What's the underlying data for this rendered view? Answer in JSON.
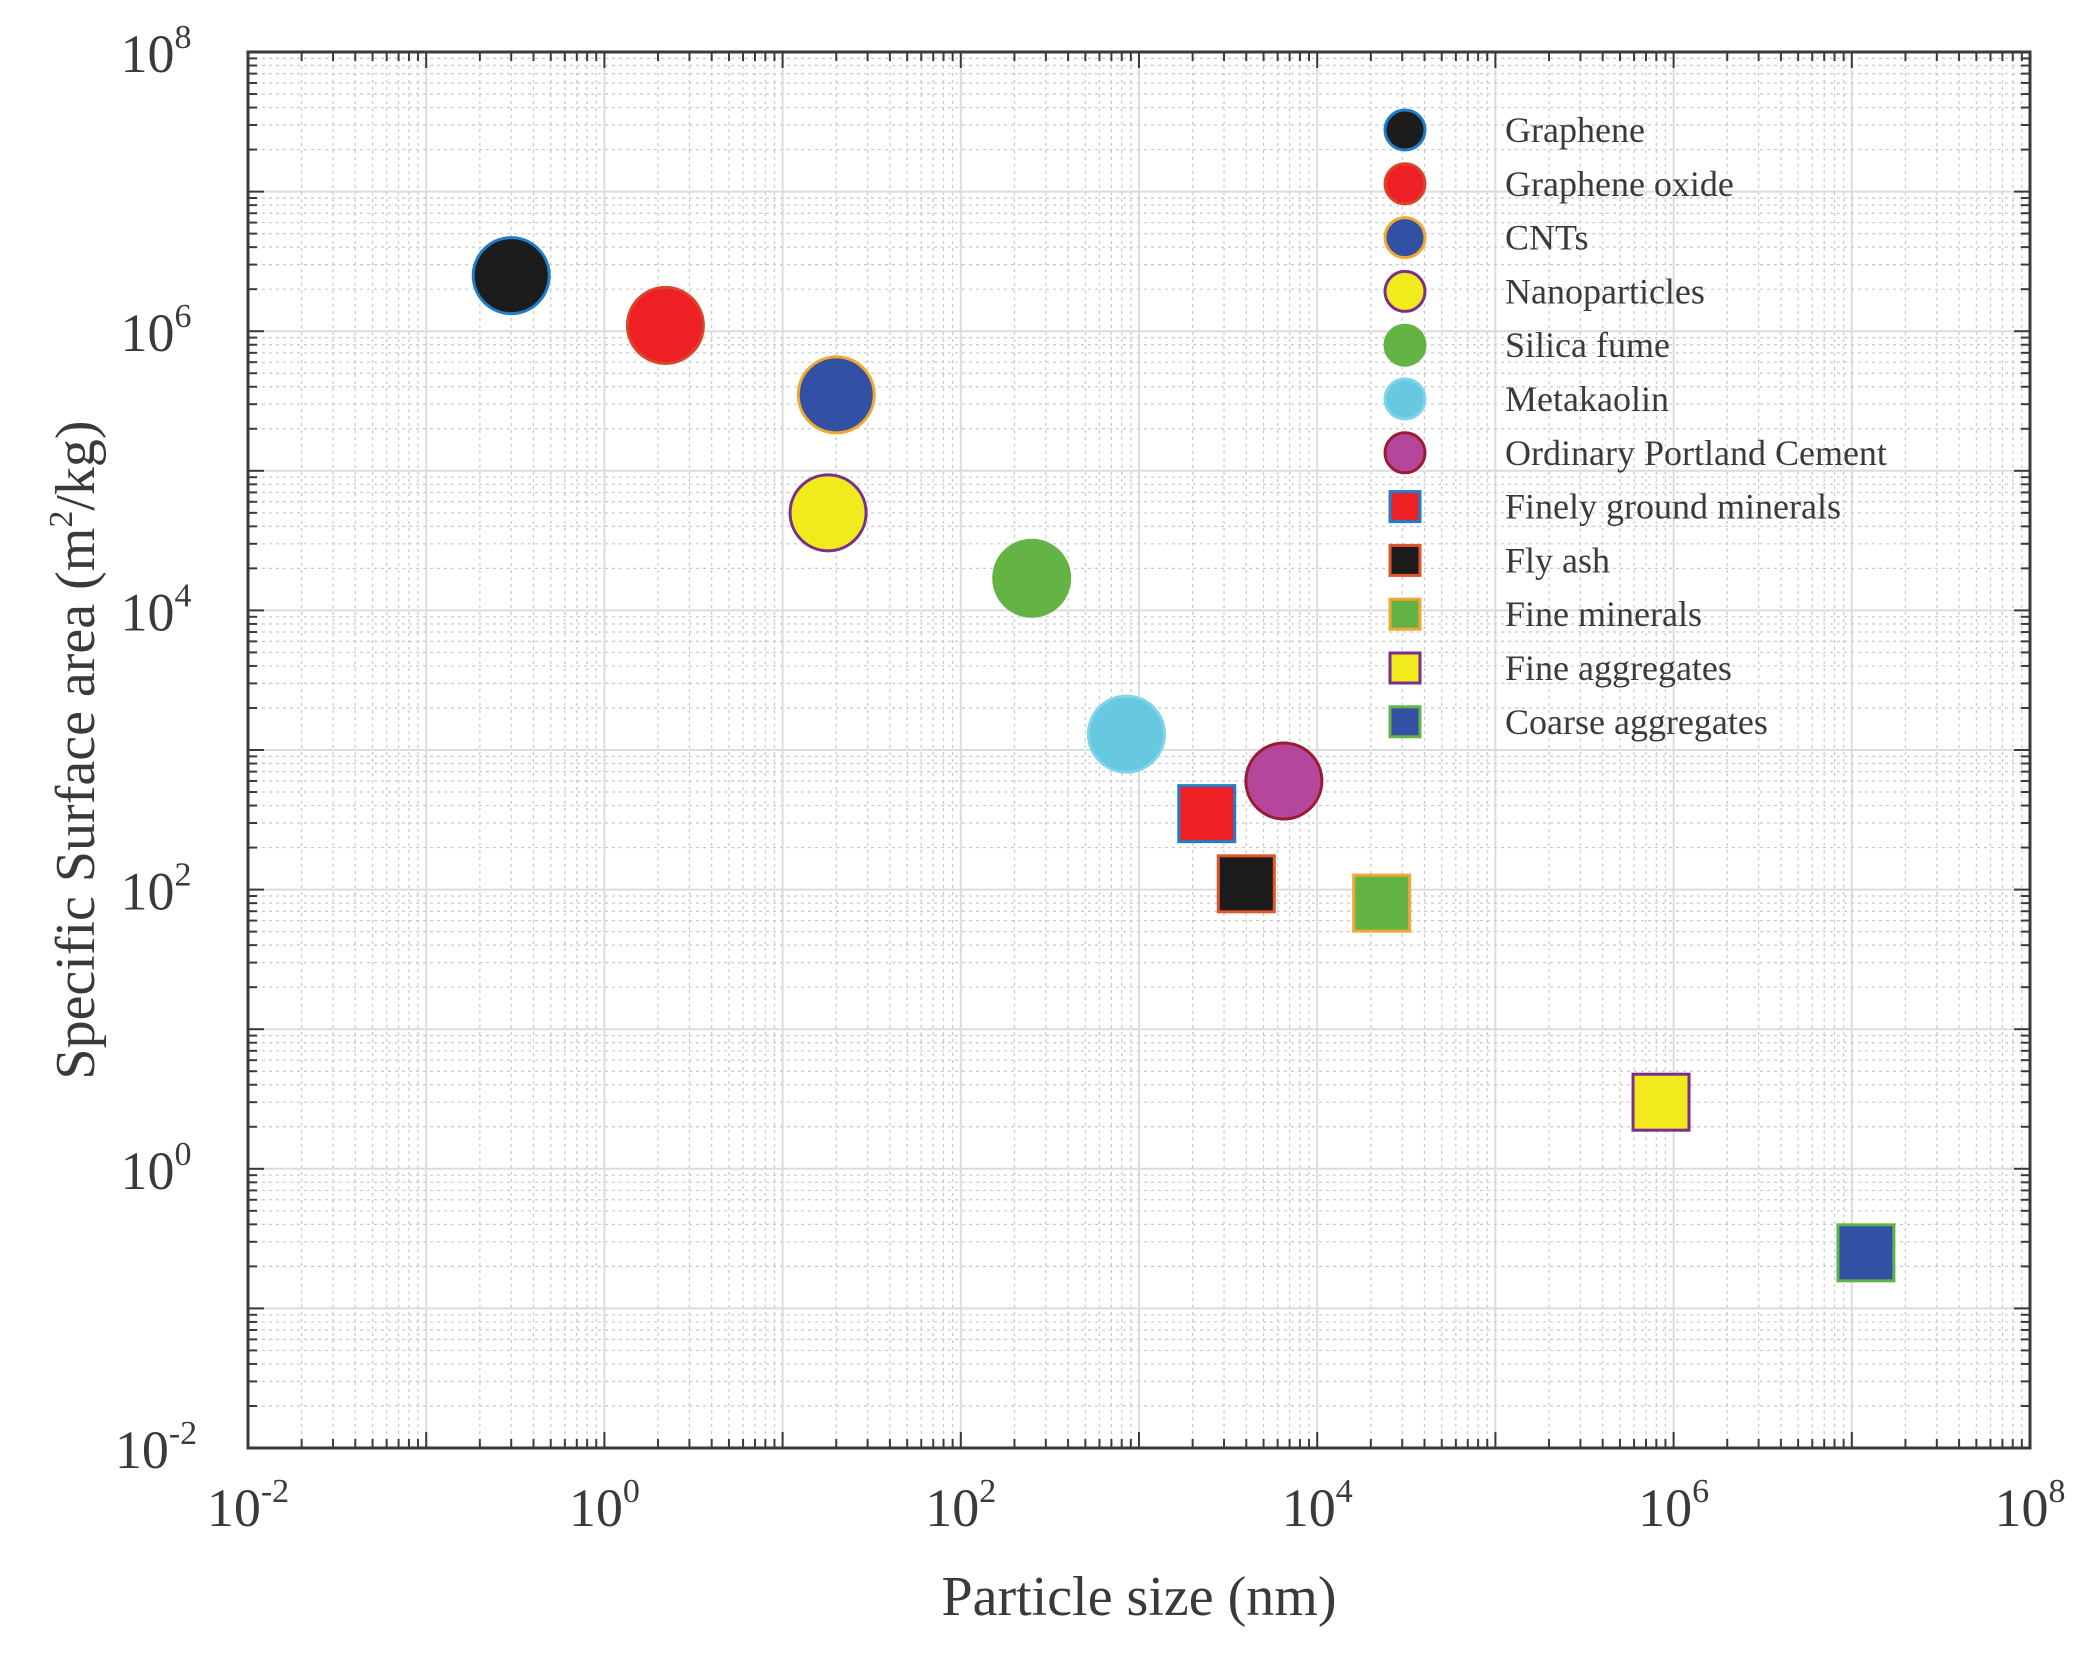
{
  "chart_data": {
    "type": "scatter",
    "title": "",
    "xlabel": "Particle size (nm)",
    "ylabel_main": "Specific Surface area (m",
    "ylabel_sup": "2",
    "ylabel_tail": "/kg)",
    "xscale": "log",
    "yscale": "log",
    "xlim": [
      0.01,
      100000000
    ],
    "ylim": [
      0.01,
      100000000
    ],
    "grid": true,
    "minor_grid": true,
    "legend_position": "top-right",
    "x_tick_labels": [
      {
        "base": "10",
        "exp": "-2"
      },
      {
        "base": "10",
        "exp": "0"
      },
      {
        "base": "10",
        "exp": "2"
      },
      {
        "base": "10",
        "exp": "4"
      },
      {
        "base": "10",
        "exp": "6"
      },
      {
        "base": "10",
        "exp": "8"
      }
    ],
    "y_tick_labels": [
      {
        "base": "10",
        "exp": "-2"
      },
      {
        "base": "10",
        "exp": "0"
      },
      {
        "base": "10",
        "exp": "2"
      },
      {
        "base": "10",
        "exp": "4"
      },
      {
        "base": "10",
        "exp": "6"
      },
      {
        "base": "10",
        "exp": "8"
      }
    ],
    "series": [
      {
        "name": "Graphene",
        "marker": "circle",
        "fill": "#1c1c1c",
        "edge": "#1f7ec9",
        "x": 0.3,
        "y": 2500000
      },
      {
        "name": "Graphene oxide",
        "marker": "circle",
        "fill": "#ee2024",
        "edge": "#d9452b",
        "x": 2.2,
        "y": 1100000
      },
      {
        "name": "CNTs",
        "marker": "circle",
        "fill": "#3251a4",
        "edge": "#f0a830",
        "x": 20,
        "y": 350000
      },
      {
        "name": "Nanoparticles",
        "marker": "circle",
        "fill": "#f1ea1c",
        "edge": "#7a2f8c",
        "x": 18,
        "y": 50000
      },
      {
        "name": "Silica fume",
        "marker": "circle",
        "fill": "#64b445",
        "edge": "#64b445",
        "x": 250,
        "y": 17000
      },
      {
        "name": "Metakaolin",
        "marker": "circle",
        "fill": "#66c9e0",
        "edge": "#7fd3ea",
        "x": 850,
        "y": 1300
      },
      {
        "name": "Ordinary Portland Cement",
        "marker": "circle",
        "fill": "#b4479b",
        "edge": "#9b1c31",
        "x": 6500,
        "y": 600
      },
      {
        "name": "Finely ground minerals",
        "marker": "square",
        "fill": "#ee2024",
        "edge": "#1f7ec9",
        "x": 2400,
        "y": 350
      },
      {
        "name": "Fly ash",
        "marker": "square",
        "fill": "#1c1c1c",
        "edge": "#e2552a",
        "x": 4000,
        "y": 110
      },
      {
        "name": "Fine minerals",
        "marker": "square",
        "fill": "#64b445",
        "edge": "#f0a830",
        "x": 23000,
        "y": 80
      },
      {
        "name": "Fine aggregates",
        "marker": "square",
        "fill": "#f1ea1c",
        "edge": "#7a2f8c",
        "x": 850000,
        "y": 3
      },
      {
        "name": "Coarse aggregates",
        "marker": "square",
        "fill": "#3251a4",
        "edge": "#64b445",
        "x": 12000000,
        "y": 0.25
      }
    ]
  }
}
